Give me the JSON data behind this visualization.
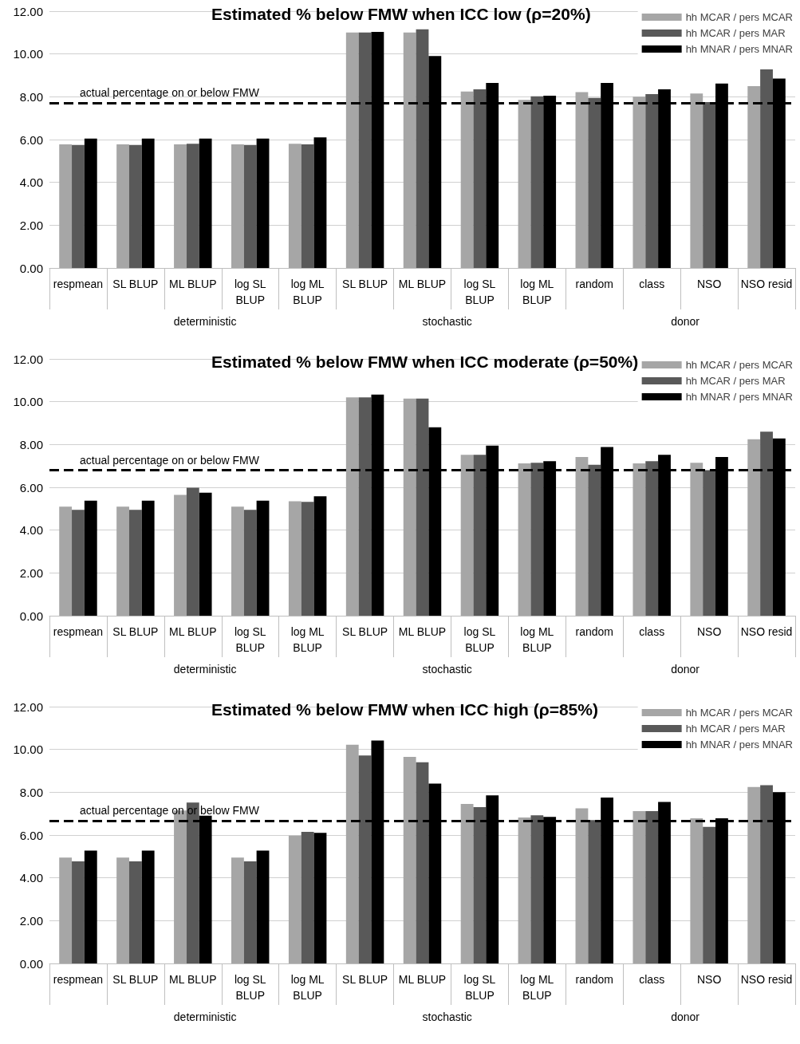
{
  "chart_data": [
    {
      "type": "bar",
      "title": "Estimated % below FMW when ICC low (ρ=20%)",
      "categories": [
        "respmean",
        "SL BLUP",
        "ML BLUP",
        "log SL BLUP",
        "log ML BLUP",
        "SL BLUP",
        "ML BLUP",
        "log SL BLUP",
        "log ML BLUP",
        "random",
        "class",
        "NSO",
        "NSO resid"
      ],
      "series": [
        {
          "name": "hh MCAR / pers MCAR",
          "color": "#a6a6a6",
          "values": [
            5.78,
            5.78,
            5.78,
            5.78,
            5.8,
            11.0,
            11.0,
            8.25,
            7.85,
            8.22,
            8.0,
            8.15,
            8.5
          ]
        },
        {
          "name": "hh MCAR / pers MAR",
          "color": "#595959",
          "values": [
            5.75,
            5.75,
            5.8,
            5.75,
            5.78,
            11.0,
            11.15,
            8.35,
            8.02,
            7.95,
            8.12,
            7.75,
            9.28
          ]
        },
        {
          "name": "hh MNAR / pers MNAR",
          "color": "#000000",
          "values": [
            6.05,
            6.05,
            6.05,
            6.05,
            6.1,
            11.03,
            9.9,
            8.65,
            8.05,
            8.65,
            8.35,
            8.62,
            8.85
          ]
        }
      ],
      "ylim": [
        0,
        12
      ],
      "yticks": [
        {
          "value": 0,
          "label": "0.00"
        },
        {
          "value": 2,
          "label": "2.00"
        },
        {
          "value": 4,
          "label": "4.00"
        },
        {
          "value": 6,
          "label": "6.00"
        },
        {
          "value": 8,
          "label": "8.00"
        },
        {
          "value": 10,
          "label": "10.00"
        },
        {
          "value": 12,
          "label": "12.00"
        }
      ],
      "ref_lines": [
        {
          "axis": "y",
          "value": 7.72,
          "label": "actual percentage on or below FMW",
          "color": "#000000",
          "line_style": "dashed"
        }
      ],
      "annotations": [
        "deterministic",
        "stochastic",
        "donor"
      ],
      "grid": "y",
      "legend": "top right"
    },
    {
      "type": "bar",
      "title": "Estimated % below FMW when ICC moderate (ρ=50%)",
      "categories": [
        "respmean",
        "SL BLUP",
        "ML BLUP",
        "log SL BLUP",
        "log ML BLUP",
        "SL BLUP",
        "ML BLUP",
        "log SL BLUP",
        "log ML BLUP",
        "random",
        "class",
        "NSO",
        "NSO resid"
      ],
      "series": [
        {
          "name": "hh MCAR / pers MCAR",
          "color": "#a6a6a6",
          "values": [
            5.1,
            5.1,
            5.65,
            5.1,
            5.35,
            10.2,
            10.15,
            7.52,
            7.12,
            7.42,
            7.12,
            7.15,
            8.25
          ]
        },
        {
          "name": "hh MCAR / pers MAR",
          "color": "#595959",
          "values": [
            4.95,
            4.95,
            5.98,
            4.95,
            5.32,
            10.2,
            10.15,
            7.52,
            7.15,
            7.05,
            7.22,
            6.8,
            8.6
          ]
        },
        {
          "name": "hh MNAR / pers MNAR",
          "color": "#000000",
          "values": [
            5.38,
            5.38,
            5.75,
            5.38,
            5.58,
            10.33,
            8.8,
            7.95,
            7.22,
            7.88,
            7.52,
            7.42,
            8.28
          ]
        }
      ],
      "ylim": [
        0,
        12
      ],
      "yticks": [
        {
          "value": 0,
          "label": "0.00"
        },
        {
          "value": 2,
          "label": "2.00"
        },
        {
          "value": 4,
          "label": "4.00"
        },
        {
          "value": 6,
          "label": "6.00"
        },
        {
          "value": 8,
          "label": "8.00"
        },
        {
          "value": 10,
          "label": "10.00"
        },
        {
          "value": 12,
          "label": "12.00"
        }
      ],
      "ref_lines": [
        {
          "axis": "y",
          "value": 6.8,
          "label": "actual percentage on or below FMW",
          "color": "#000000",
          "line_style": "dashed"
        }
      ],
      "annotations": [
        "deterministic",
        "stochastic",
        "donor"
      ],
      "grid": "y",
      "legend": "top right"
    },
    {
      "type": "bar",
      "title": "Estimated % below FMW when ICC high (ρ=85%)",
      "categories": [
        "respmean",
        "SL BLUP",
        "ML BLUP",
        "log SL BLUP",
        "log ML BLUP",
        "SL BLUP",
        "ML BLUP",
        "log SL BLUP",
        "log ML BLUP",
        "random",
        "class",
        "NSO",
        "NSO resid"
      ],
      "series": [
        {
          "name": "hh MCAR / pers MCAR",
          "color": "#a6a6a6",
          "values": [
            4.95,
            4.95,
            7.15,
            4.95,
            5.97,
            10.22,
            9.65,
            7.45,
            6.82,
            7.25,
            7.12,
            6.78,
            8.25
          ]
        },
        {
          "name": "hh MCAR / pers MAR",
          "color": "#595959",
          "values": [
            4.77,
            4.77,
            7.52,
            4.77,
            6.15,
            9.72,
            9.4,
            7.3,
            6.92,
            6.7,
            7.12,
            6.38,
            8.33
          ]
        },
        {
          "name": "hh MNAR / pers MNAR",
          "color": "#000000",
          "values": [
            5.27,
            5.27,
            6.9,
            5.27,
            6.1,
            10.42,
            8.4,
            7.85,
            6.85,
            7.75,
            7.55,
            6.78,
            8.0
          ]
        }
      ],
      "ylim": [
        0,
        12
      ],
      "yticks": [
        {
          "value": 0,
          "label": "0.00"
        },
        {
          "value": 2,
          "label": "2.00"
        },
        {
          "value": 4,
          "label": "4.00"
        },
        {
          "value": 6,
          "label": "6.00"
        },
        {
          "value": 8,
          "label": "8.00"
        },
        {
          "value": 10,
          "label": "10.00"
        },
        {
          "value": 12,
          "label": "12.00"
        }
      ],
      "ref_lines": [
        {
          "axis": "y",
          "value": 6.68,
          "label": "actual percentage on or below FMW",
          "color": "#000000",
          "line_style": "dashed"
        }
      ],
      "annotations": [
        "deterministic",
        "stochastic",
        "donor"
      ],
      "grid": "y",
      "legend": "top right"
    }
  ]
}
